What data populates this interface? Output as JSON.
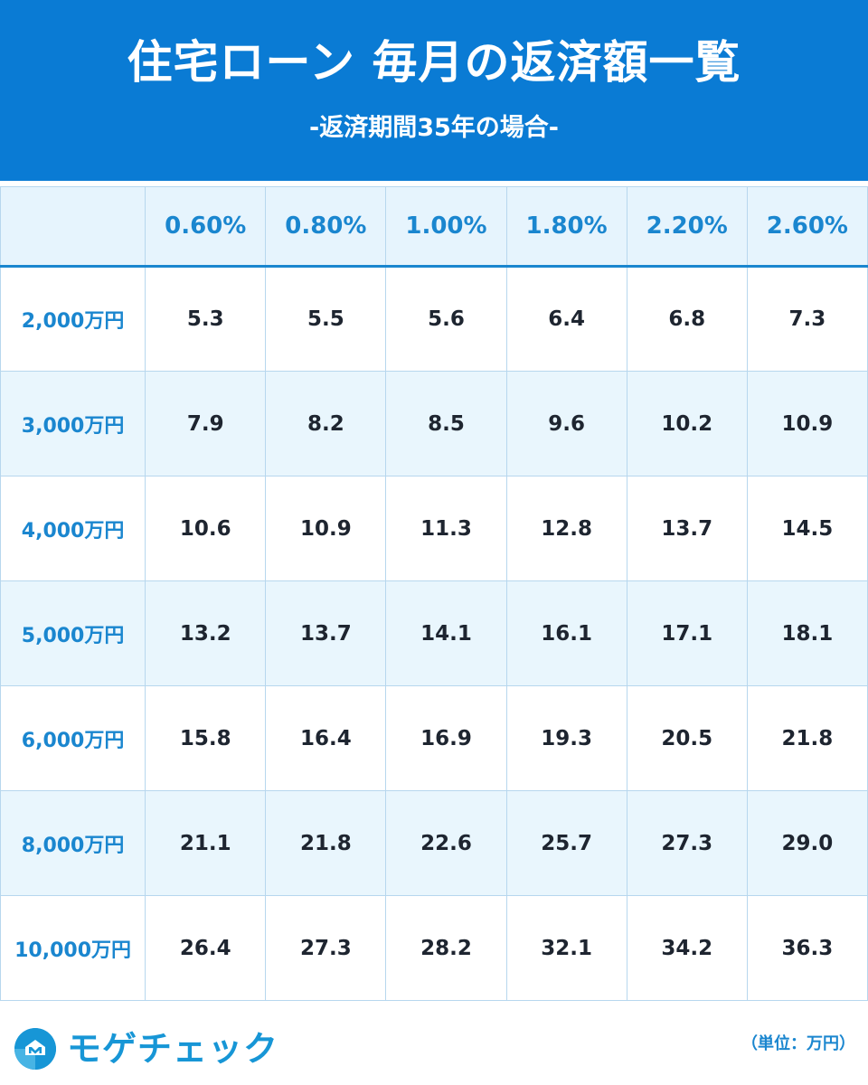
{
  "header": {
    "title": "住宅ローン 毎月の返済額一覧",
    "subtitle": "-返済期間35年の場合-"
  },
  "chart_data": {
    "type": "table",
    "title": "住宅ローン 毎月の返済額一覧",
    "subtitle": "-返済期間35年の場合-",
    "columns": [
      "0.60%",
      "0.80%",
      "1.00%",
      "1.80%",
      "2.20%",
      "2.60%"
    ],
    "rows": [
      {
        "label": "2,000万円",
        "values": [
          "5.3",
          "5.5",
          "5.6",
          "6.4",
          "6.8",
          "7.3"
        ]
      },
      {
        "label": "3,000万円",
        "values": [
          "7.9",
          "8.2",
          "8.5",
          "9.6",
          "10.2",
          "10.9"
        ]
      },
      {
        "label": "4,000万円",
        "values": [
          "10.6",
          "10.9",
          "11.3",
          "12.8",
          "13.7",
          "14.5"
        ]
      },
      {
        "label": "5,000万円",
        "values": [
          "13.2",
          "13.7",
          "14.1",
          "16.1",
          "17.1",
          "18.1"
        ]
      },
      {
        "label": "6,000万円",
        "values": [
          "15.8",
          "16.4",
          "16.9",
          "19.3",
          "20.5",
          "21.8"
        ]
      },
      {
        "label": "8,000万円",
        "values": [
          "21.1",
          "21.8",
          "22.6",
          "25.7",
          "27.3",
          "29.0"
        ]
      },
      {
        "label": "10,000万円",
        "values": [
          "26.4",
          "27.3",
          "28.2",
          "32.1",
          "34.2",
          "36.3"
        ]
      }
    ],
    "unit_note": "（単位：万円）"
  },
  "footer": {
    "logo_text": "モゲチェック",
    "logo_icon": "house-m-icon",
    "unit_note": "（単位：万円）"
  },
  "colors": {
    "header_bg": "#0a7bd4",
    "accent": "#1a86cf",
    "row_alt_bg": "#e9f6fd",
    "grid": "#b7d7ee"
  }
}
